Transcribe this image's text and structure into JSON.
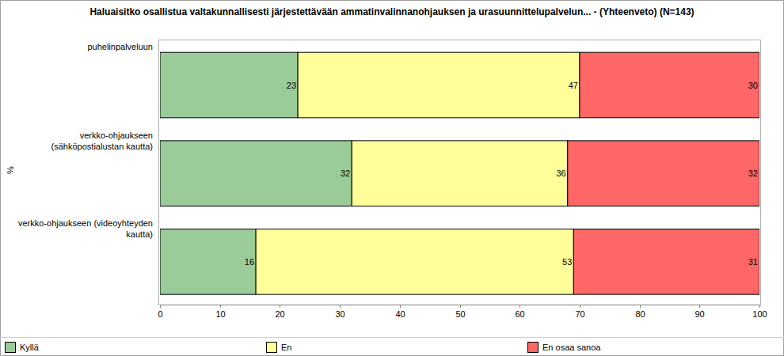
{
  "chart_data": {
    "type": "bar",
    "title": "Haluaisitko osallistua valtakunnallisesti järjestettävään ammatinvalinnanohjauksen ja urasuunnittelupalvelun... -  (Yhteenveto) (N=143)",
    "y_label": "%",
    "orientation": "horizontal",
    "stacked": true,
    "data_labels": true,
    "legend": "bottom",
    "categories": [
      "puhelinpalveluun",
      "verkko-ohjaukseen (sähköpostialustan kautta)",
      "verkko-ohjaukseen (videoyhteyden kautta)"
    ],
    "series": [
      {
        "name": "Kyllä",
        "color": "#99cc99",
        "values": [
          23,
          32,
          16
        ]
      },
      {
        "name": "En",
        "color": "#ffff99",
        "values": [
          47,
          36,
          53
        ]
      },
      {
        "name": "En osaa sanoa",
        "color": "#ff6666",
        "values": [
          30,
          32,
          31
        ]
      }
    ],
    "xlim": [
      0,
      100
    ],
    "xticks": [
      0,
      10,
      20,
      30,
      40,
      50,
      60,
      70,
      80,
      90,
      100
    ]
  }
}
